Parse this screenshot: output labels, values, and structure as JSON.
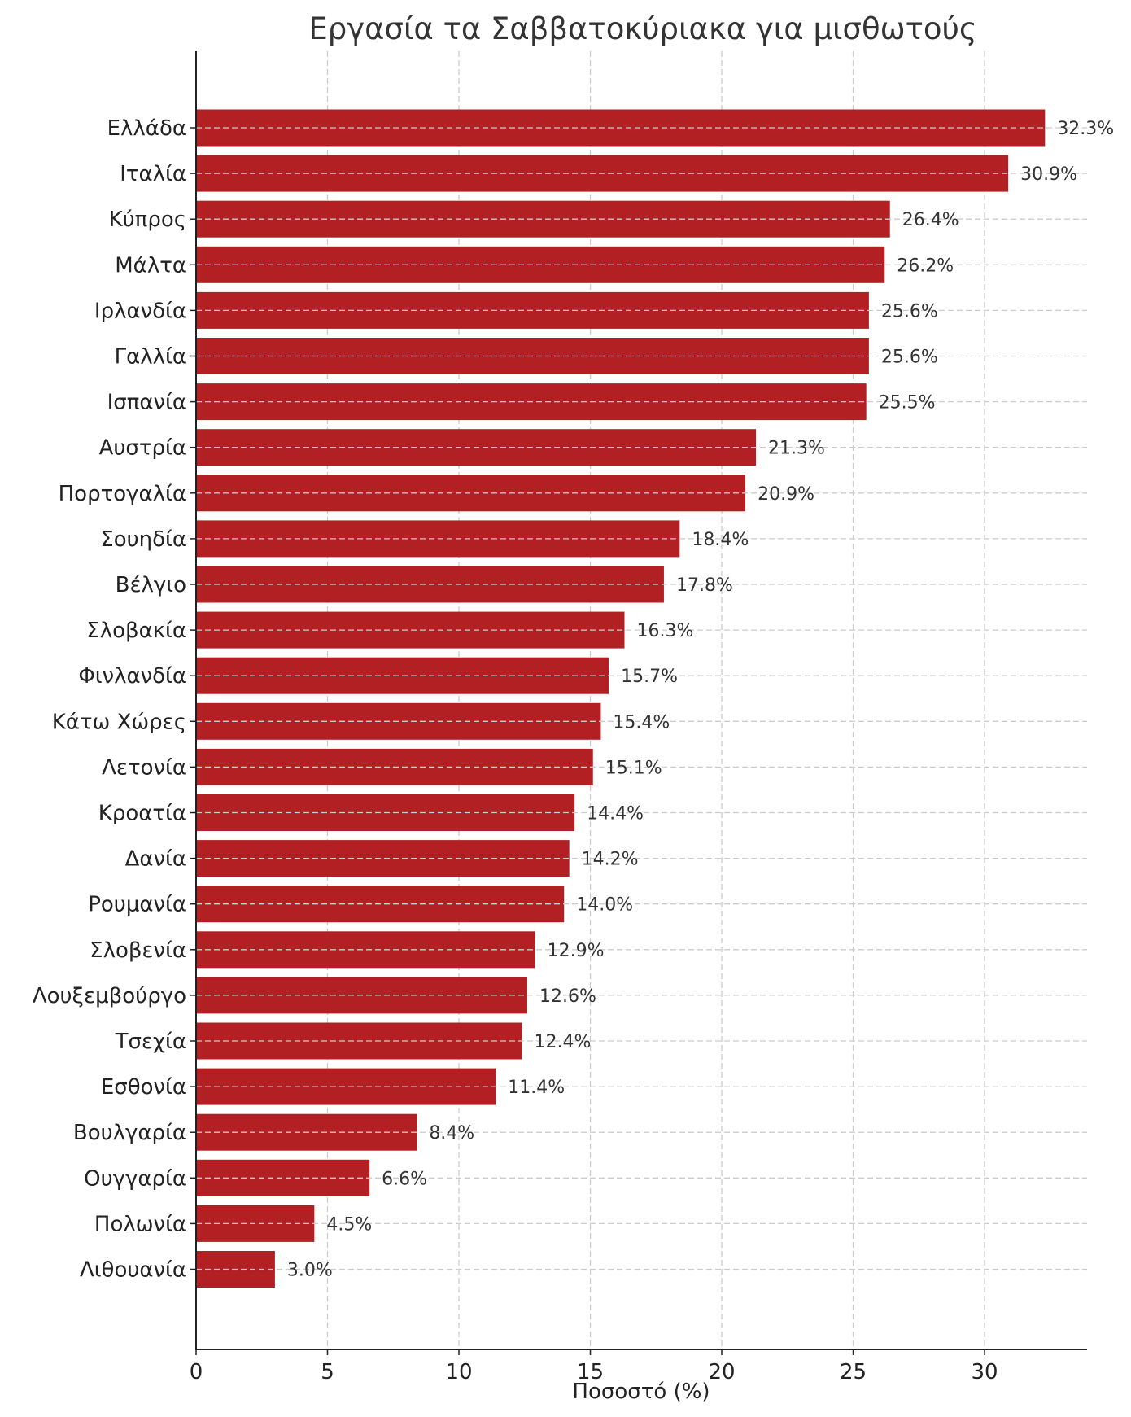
{
  "chart_data": {
    "type": "bar",
    "orientation": "horizontal",
    "title": "Εργασία τα Σαββατοκύριακα για μισθωτούς",
    "xlabel": "Ποσοστό (%)",
    "ylabel": "",
    "xlim": [
      0,
      33.9
    ],
    "xticks": [
      0,
      5,
      10,
      15,
      20,
      25,
      30
    ],
    "xtick_labels": [
      "0",
      "5",
      "10",
      "15",
      "20",
      "25",
      "30"
    ],
    "grid": true,
    "bar_color": "#b22024",
    "categories": [
      "Ελλάδα",
      "Ιταλία",
      "Κύπρος",
      "Μάλτα",
      "Ιρλανδία",
      "Γαλλία",
      "Ισπανία",
      "Αυστρία",
      "Πορτογαλία",
      "Σουηδία",
      "Βέλγιο",
      "Σλοβακία",
      "Φινλανδία",
      "Κάτω Χώρες",
      "Λετονία",
      "Κροατία",
      "Δανία",
      "Ρουμανία",
      "Σλοβενία",
      "Λουξεμβούργο",
      "Τσεχία",
      "Εσθονία",
      "Βουλγαρία",
      "Ουγγαρία",
      "Πολωνία",
      "Λιθουανία"
    ],
    "values": [
      32.3,
      30.9,
      26.4,
      26.2,
      25.6,
      25.6,
      25.5,
      21.3,
      20.9,
      18.4,
      17.8,
      16.3,
      15.7,
      15.4,
      15.1,
      14.4,
      14.2,
      14.0,
      12.9,
      12.6,
      12.4,
      11.4,
      8.4,
      6.6,
      4.5,
      3.0
    ],
    "value_labels": [
      "32.3%",
      "30.9%",
      "26.4%",
      "26.2%",
      "25.6%",
      "25.6%",
      "25.5%",
      "21.3%",
      "20.9%",
      "18.4%",
      "17.8%",
      "16.3%",
      "15.7%",
      "15.4%",
      "15.1%",
      "14.4%",
      "14.2%",
      "14.0%",
      "12.9%",
      "12.6%",
      "12.4%",
      "11.4%",
      "8.4%",
      "6.6%",
      "4.5%",
      "3.0%"
    ]
  }
}
